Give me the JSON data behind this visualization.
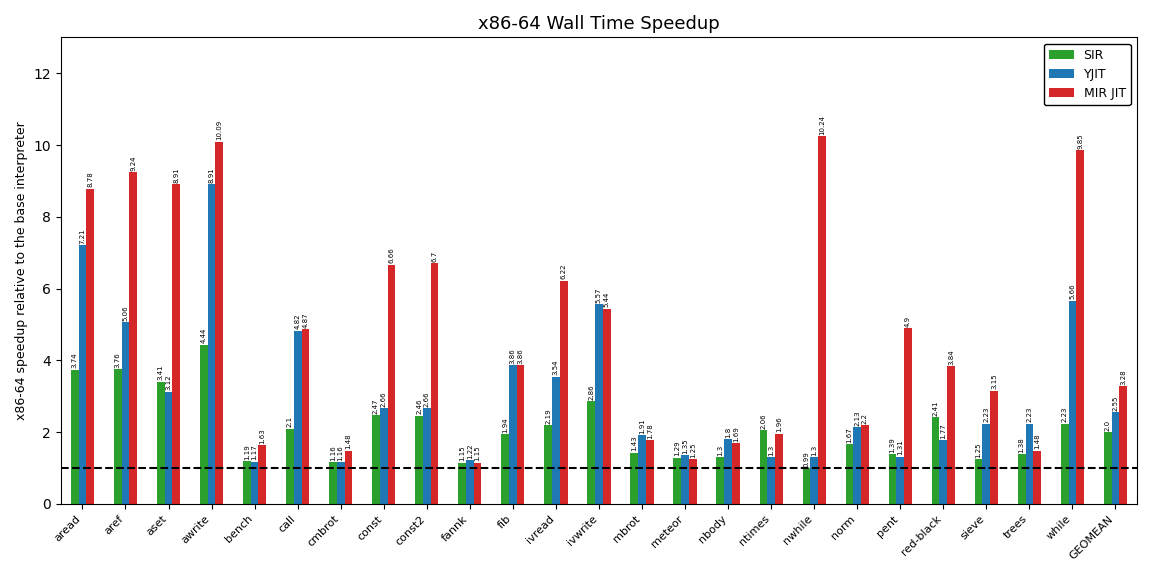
{
  "title": "x86-64 Wall Time Speedup",
  "ylabel": "x86-64 speedup relative to the base interpreter",
  "categories": [
    "aread",
    "aref",
    "aset",
    "awrite",
    "bench",
    "call",
    "cmbrot",
    "const",
    "const2",
    "fannk",
    "fib",
    "ivread",
    "ivwrite",
    "mbrot",
    "meteor",
    "nbody",
    "ntimes",
    "nwhile",
    "norm",
    "pent",
    "red-black",
    "sieve",
    "trees",
    "while",
    "GEOMEAN"
  ],
  "SIR": [
    3.74,
    3.76,
    3.41,
    4.44,
    1.19,
    2.1,
    1.16,
    2.47,
    2.46,
    1.15,
    1.94,
    2.19,
    2.86,
    1.43,
    1.29,
    1.3,
    2.06,
    0.99,
    1.67,
    1.39,
    2.41,
    1.25,
    1.38,
    2.23,
    2.0
  ],
  "YJIT": [
    7.21,
    5.06,
    3.12,
    8.91,
    1.17,
    4.82,
    1.16,
    2.66,
    2.66,
    1.22,
    3.86,
    3.54,
    5.57,
    1.91,
    1.35,
    1.8,
    1.3,
    1.3,
    2.13,
    1.31,
    1.77,
    2.23,
    2.23,
    5.66,
    2.55
  ],
  "MIR JIT": [
    8.78,
    9.24,
    8.91,
    10.09,
    1.63,
    4.87,
    1.48,
    6.66,
    6.7,
    1.15,
    3.86,
    6.22,
    5.44,
    1.78,
    1.25,
    1.69,
    1.96,
    10.24,
    2.2,
    4.9,
    3.84,
    3.15,
    1.48,
    9.85,
    3.28
  ],
  "SIR_color": "#2ca02c",
  "YJIT_color": "#1f77b4",
  "MIR_color": "#d62728",
  "baseline": 1.0,
  "ylim": [
    0,
    13
  ],
  "bar_width": 0.18,
  "legend_labels": [
    "SIR",
    "YJIT",
    "MIR JIT"
  ]
}
